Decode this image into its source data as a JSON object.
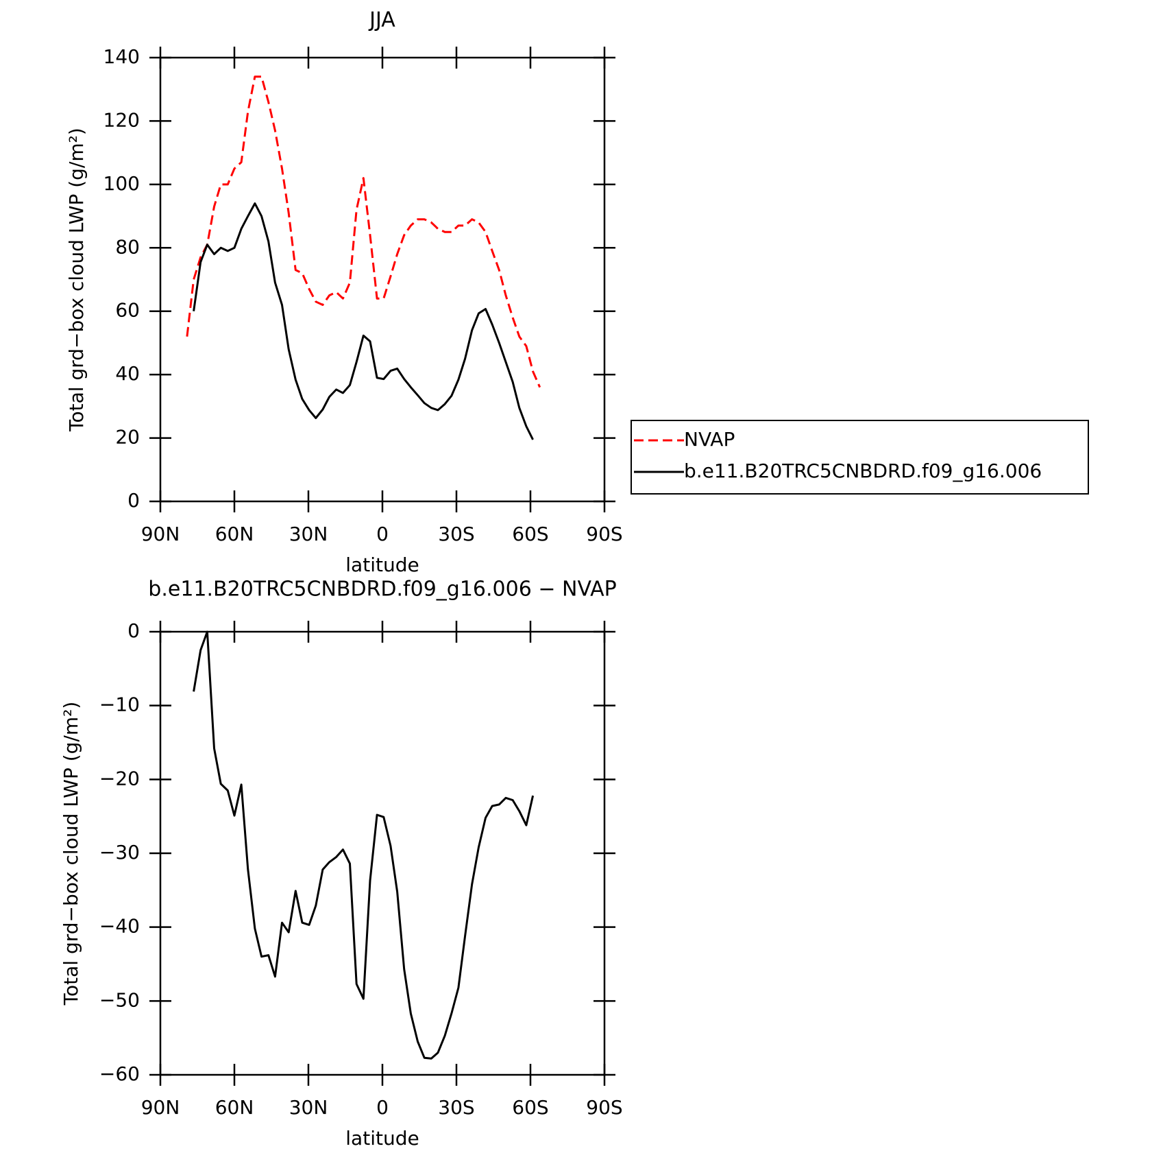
{
  "chart_data": [
    {
      "type": "line",
      "title": "JJA",
      "xlabel": "latitude",
      "ylabel": "Total grd−box cloud LWP (g/m²)",
      "x": [
        79.2,
        76.5,
        73.7,
        71.0,
        68.2,
        65.5,
        62.7,
        60.0,
        57.2,
        54.5,
        51.7,
        49.0,
        46.2,
        43.5,
        40.7,
        38.0,
        35.2,
        32.5,
        29.7,
        27.0,
        24.2,
        21.5,
        18.7,
        16.0,
        13.2,
        10.5,
        7.7,
        5.0,
        2.2,
        -0.5,
        -3.3,
        -6.0,
        -8.8,
        -11.5,
        -14.3,
        -17.0,
        -19.8,
        -22.5,
        -25.3,
        -28.0,
        -30.8,
        -33.5,
        -36.3,
        -39.0,
        -41.8,
        -44.5,
        -47.3,
        -50.0,
        -52.8,
        -55.5,
        -58.3,
        -61.0,
        -63.8
      ],
      "series": [
        {
          "name": "NVAP",
          "color": "#ff0000",
          "dashed": true,
          "values": [
            52,
            70,
            77,
            81,
            93,
            100,
            100,
            105,
            107,
            123,
            134,
            134,
            126,
            117,
            105,
            91,
            73,
            72,
            67,
            63,
            62,
            65,
            66,
            64,
            69,
            92,
            102,
            84,
            64,
            64,
            71,
            78,
            84,
            87,
            89,
            89,
            88,
            86,
            85,
            85,
            87,
            87,
            89,
            88,
            85,
            79,
            73,
            65,
            58,
            52,
            49,
            41,
            36
          ]
        },
        {
          "name": "b.e11.B20TRC5CNBDRD.f09_g16.006",
          "color": "#000000",
          "dashed": false,
          "values": [
            null,
            60,
            75.5,
            81,
            78,
            80,
            79,
            80,
            86,
            90,
            94,
            90,
            82,
            69,
            62,
            48,
            38.4,
            32.3,
            28.8,
            26.3,
            29,
            33,
            35.3,
            34.2,
            36.7,
            44,
            52.3,
            50.5,
            39,
            38.6,
            41.2,
            41.9,
            38.6,
            36,
            33.5,
            31,
            29.5,
            28.8,
            30.7,
            33.3,
            38.4,
            45,
            54,
            59.3,
            60.7,
            55.8,
            50,
            44,
            37.7,
            29.5,
            23.7,
            19.5,
            null
          ]
        }
      ],
      "xlim": [
        90,
        -90
      ],
      "xticks": [
        {
          "value": 90,
          "label": "90N"
        },
        {
          "value": 60,
          "label": "60N"
        },
        {
          "value": 30,
          "label": "30N"
        },
        0,
        {
          "value": -30,
          "label": "30S"
        },
        {
          "value": -60,
          "label": "60S"
        },
        {
          "value": -90,
          "label": "90S"
        }
      ],
      "ylim": [
        0,
        140
      ],
      "yticks": [
        0,
        20,
        40,
        60,
        80,
        100,
        120,
        140
      ],
      "legend": "right"
    },
    {
      "type": "line",
      "title": "b.e11.B20TRC5CNBDRD.f09_g16.006 − NVAP",
      "xlabel": "latitude",
      "ylabel": "Total grd−box cloud LWP (g/m²)",
      "x": [
        79.2,
        76.5,
        73.7,
        71.0,
        68.2,
        65.5,
        62.7,
        60.0,
        57.2,
        54.5,
        51.7,
        49.0,
        46.2,
        43.5,
        40.7,
        38.0,
        35.2,
        32.5,
        29.7,
        27.0,
        24.2,
        21.5,
        18.7,
        16.0,
        13.2,
        10.5,
        7.7,
        5.0,
        2.2,
        -0.5,
        -3.3,
        -6.0,
        -8.8,
        -11.5,
        -14.3,
        -17.0,
        -19.8,
        -22.5,
        -25.3,
        -28.0,
        -30.8,
        -33.5,
        -36.3,
        -39.0,
        -41.8,
        -44.5,
        -47.3,
        -50.0,
        -52.8,
        -55.5,
        -58.3,
        -61.0,
        -63.8
      ],
      "series": [
        {
          "color": "#000000",
          "dashed": false,
          "values": [
            null,
            -8.1,
            -2.5,
            0,
            -15.8,
            -20.6,
            -21.5,
            -24.9,
            -20.7,
            -32.2,
            -40.2,
            -44,
            -43.8,
            -46.7,
            -39.4,
            -40.7,
            -35.1,
            -39.4,
            -39.7,
            -37.1,
            -32.2,
            -31.2,
            -30.5,
            -29.5,
            -31.4,
            -47.7,
            -49.7,
            -33.7,
            -24.8,
            -25.1,
            -29.0,
            -35.2,
            -45.7,
            -51.7,
            -55.5,
            -57.7,
            -57.8,
            -57.0,
            -54.7,
            -51.7,
            -48.2,
            -41.2,
            -34.2,
            -29.2,
            -25.2,
            -23.6,
            -23.4,
            -22.5,
            -22.8,
            -24.3,
            -26.2,
            -22.2,
            null
          ]
        }
      ],
      "xlim": [
        90,
        -90
      ],
      "xticks": [
        {
          "value": 90,
          "label": "90N"
        },
        {
          "value": 60,
          "label": "60N"
        },
        {
          "value": 30,
          "label": "30N"
        },
        0,
        {
          "value": -30,
          "label": "30S"
        },
        {
          "value": -60,
          "label": "60S"
        },
        {
          "value": -90,
          "label": "90S"
        }
      ],
      "ylim": [
        -60,
        0
      ],
      "yticks": [
        {
          "value": -60,
          "label": "−60"
        },
        {
          "value": -50,
          "label": "−50"
        },
        {
          "value": -40,
          "label": "−40"
        },
        {
          "value": -30,
          "label": "−30"
        },
        {
          "value": -20,
          "label": "−20"
        },
        {
          "value": -10,
          "label": "−10"
        },
        0
      ]
    }
  ]
}
